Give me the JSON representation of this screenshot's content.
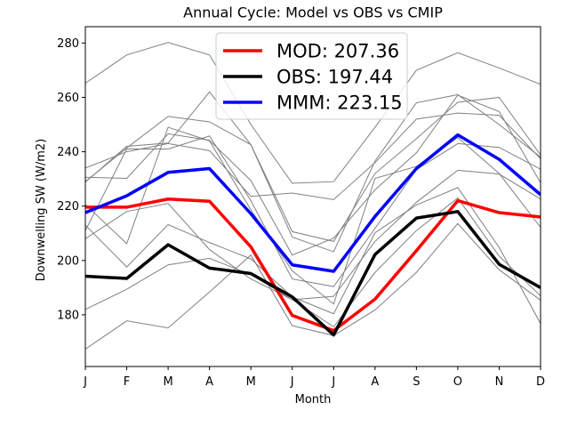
{
  "chart_data": {
    "type": "line",
    "title": "Annual Cycle: Model vs OBS vs CMIP",
    "xlabel": "Month",
    "ylabel": "Downwelling SW (W/m2)",
    "categories": [
      "J",
      "F",
      "M",
      "A",
      "M",
      "J",
      "J",
      "A",
      "S",
      "O",
      "N",
      "D"
    ],
    "ylim": [
      161,
      286
    ],
    "yticks": [
      180,
      200,
      220,
      240,
      260,
      280
    ],
    "grid": false,
    "legend_position": "top-center",
    "legend": [
      {
        "label": "MOD: 207.36",
        "color": "#ff0000"
      },
      {
        "label": "OBS: 197.44",
        "color": "#000000"
      },
      {
        "label": "MMM: 223.15",
        "color": "#0000ff"
      }
    ],
    "series": [
      {
        "name": "MOD: 207.36",
        "color": "#ff0000",
        "role": "highlight",
        "values": [
          219.6,
          219.6,
          222.6,
          221.8,
          205.0,
          179.8,
          174.2,
          185.8,
          203.6,
          222.0,
          217.6,
          216.0
        ]
      },
      {
        "name": "OBS: 197.44",
        "color": "#000000",
        "role": "highlight",
        "values": [
          194.2,
          193.4,
          205.8,
          197.2,
          195.2,
          186.6,
          172.6,
          202.2,
          215.6,
          218.0,
          198.6,
          190.0
        ]
      },
      {
        "name": "MMM: 223.15",
        "color": "#0000ff",
        "role": "highlight",
        "values": [
          217.6,
          223.8,
          232.4,
          233.8,
          217.2,
          198.4,
          196.0,
          216.2,
          233.8,
          246.2,
          237.2,
          224.2
        ]
      }
    ],
    "cmip_series_color": "#808080",
    "cmip_series": [
      [
        265.2,
        275.6,
        280.2,
        275.6,
        250.0,
        228.4,
        229.0,
        249.0,
        270.0,
        276.4,
        270.8,
        264.8
      ],
      [
        229.0,
        241.4,
        253.0,
        251.0,
        242.6,
        208.6,
        203.2,
        236.6,
        258.0,
        261.0,
        250.0,
        238.0
      ],
      [
        234.0,
        240.0,
        243.0,
        240.4,
        223.6,
        224.8,
        222.4,
        236.0,
        252.0,
        254.2,
        253.4,
        237.4
      ],
      [
        228.8,
        242.0,
        243.2,
        262.0,
        242.6,
        210.6,
        207.0,
        232.0,
        244.8,
        258.2,
        260.0,
        238.8
      ],
      [
        230.6,
        230.2,
        246.6,
        244.2,
        229.4,
        202.0,
        208.2,
        226.0,
        239.6,
        260.8,
        254.8,
        228.6
      ],
      [
        211.0,
        241.0,
        241.0,
        245.8,
        222.0,
        193.2,
        190.4,
        211.8,
        233.4,
        243.0,
        241.6,
        233.6
      ],
      [
        208.0,
        218.0,
        221.0,
        204.0,
        193.2,
        185.6,
        186.8,
        207.0,
        221.4,
        233.2,
        231.8,
        222.6
      ],
      [
        220.6,
        206.2,
        249.0,
        244.0,
        218.6,
        196.2,
        184.0,
        230.2,
        234.6,
        245.2,
        232.0,
        212.2
      ],
      [
        213.0,
        197.6,
        213.2,
        206.6,
        200.6,
        186.6,
        180.4,
        210.2,
        220.4,
        226.8,
        204.8,
        176.8
      ],
      [
        182.0,
        189.4,
        198.4,
        200.8,
        194.8,
        185.6,
        175.6,
        195.6,
        211.0,
        223.0,
        201.6,
        187.0
      ],
      [
        167.4,
        177.8,
        175.2,
        188.4,
        202.0,
        176.0,
        172.4,
        181.8,
        195.6,
        213.6,
        196.6,
        185.4
      ]
    ]
  }
}
